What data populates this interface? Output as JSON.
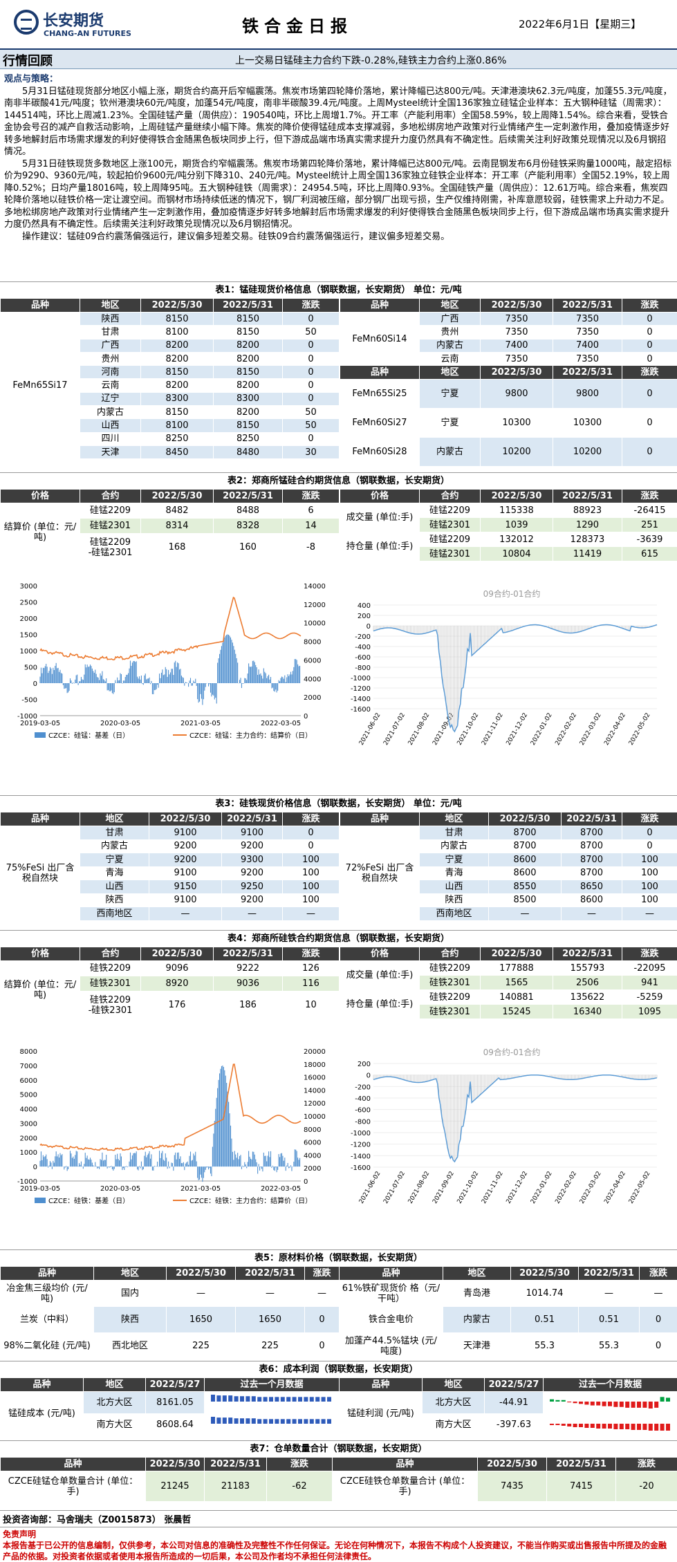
{
  "header": {
    "logo_cn": "长安期货",
    "logo_en": "CHANG-AN FUTURES",
    "title": "铁合金日报",
    "date": "2022年6月1日【星期三】"
  },
  "bar": {
    "label": "行情回顾",
    "text": "上一交易日锰硅主力合约下跌-0.28%,硅铁主力合约上涨0.86%"
  },
  "strategy": {
    "heading": "观点与策略：",
    "p1": "5月31日锰硅现货部分地区小幅上涨，期货合约高开后窄幅震荡。焦炭市场第四轮降价落地，累计降幅已达800元/吨。天津港澳块62.3元/吨度，加蓬55.3元/吨度，南非半碳酸41元/吨度；钦州港澳块60元/吨度，加蓬54元/吨度，南非半碳酸39.4元/吨度。上周Mysteel统计全国136家独立硅锰企业样本：五大钢种硅锰（周需求）：144514吨，环比上周减1.23%。全国硅锰产量（周供应）：190540吨，环比上周增1.7%。开工率（产能利用率）全国58.59%，较上周降1.54%。综合来看，受铁合金协会号召的减产自救活动影响，上周硅锰产量继续小幅下降。焦炭的降价使得锰硅成本支撑减弱，多地松绑房地产政策对行业情绪产生一定刺激作用，叠加疫情逐步好转多地解封后市场需求爆发的利好使得铁合金随黑色板块同步上行，但下游成品端市场真实需求提升力度仍然具有不确定性。后续需关注利好政策兑现情况以及6月钢招情况。",
    "p2": "5月31日硅铁现货多数地区上涨100元，期货合约窄幅震荡。焦炭市场第四轮降价落地，累计降幅已达800元/吨。云南昆钢发布6月份硅铁采购量1000吨，敲定招标价为9290、9360元/吨，较起拍价9600元/吨分别下降310、240元/吨。Mysteel统计上周全国136家独立硅铁企业样本：开工率（产能利用率）全国52.19%，较上周降0.52%；日均产量18016吨，较上周降95吨。五大钢种硅铁（周需求）：24954.5吨，环比上周降0.93%。全国硅铁产量（周供应）：12.61万吨。综合来看，焦炭四轮降价落地以硅铁价格一定让渡空间。而钢材市场持续低迷的情况下，钢厂利润被压缩，部分钢厂出现亏损，生产仅维持刚需，补库意愿较弱，硅铁需求上升动力不足。多地松绑房地产政策对行业情绪产生一定刺激作用，叠加疫情逐步好转多地解封后市场需求爆发的利好使得铁合金随黑色板块同步上行，但下游成品端市场真实需求提升力度仍然具有不确定性。后续需关注利好政策兑现情况以及6月钢招情况。",
    "p3": "操作建议：锰硅09合约震荡偏强运行，建议偏多短差交易。硅铁09合约震荡偏强运行，建议偏多短差交易。"
  },
  "t1": {
    "title": "表1：锰硅现货价格信息（钢联数据，长安期货）  单位：元/吨",
    "head": [
      "品种",
      "地区",
      "2022/5/30",
      "2022/5/31",
      "涨跌",
      "品种",
      "地区",
      "2022/5/30",
      "2022/5/31",
      "涨跌"
    ],
    "left_variety": "FeMn65Si17",
    "left_rows": [
      [
        "陕西",
        "8150",
        "8150",
        "0"
      ],
      [
        "甘肃",
        "8100",
        "8150",
        "50"
      ],
      [
        "广西",
        "8200",
        "8200",
        "0"
      ],
      [
        "贵州",
        "8200",
        "8200",
        "0"
      ],
      [
        "河南",
        "8150",
        "8150",
        "0"
      ],
      [
        "云南",
        "8200",
        "8200",
        "0"
      ],
      [
        "辽宁",
        "8300",
        "8300",
        "0"
      ],
      [
        "内蒙古",
        "8150",
        "8200",
        "50"
      ],
      [
        "山西",
        "8100",
        "8150",
        "50"
      ],
      [
        "四川",
        "8250",
        "8250",
        "0"
      ],
      [
        "天津",
        "8450",
        "8480",
        "30"
      ]
    ],
    "right_variety_a": "FeMn60Si14",
    "right_rows_a": [
      [
        "广西",
        "7350",
        "7350",
        "0"
      ],
      [
        "贵州",
        "7350",
        "7350",
        "0"
      ],
      [
        "内蒙古",
        "7400",
        "7400",
        "0"
      ],
      [
        "云南",
        "7350",
        "7350",
        "0"
      ]
    ],
    "right_head_b": [
      "品种",
      "地区",
      "2022/5/30",
      "2022/5/31",
      "涨跌"
    ],
    "right_rows_b": [
      [
        "FeMn65Si25",
        "宁夏",
        "9800",
        "9800",
        "0"
      ],
      [
        "FeMn60Si27",
        "宁夏",
        "10300",
        "10300",
        "0"
      ],
      [
        "FeMn60Si28",
        "内蒙古",
        "10200",
        "10200",
        "0"
      ]
    ]
  },
  "t2": {
    "title": "表2：郑商所锰硅合约期货信息（钢联数据，长安期货）",
    "head": [
      "价格",
      "合约",
      "2022/5/30",
      "2022/5/31",
      "涨跌",
      "价格",
      "合约",
      "2022/5/30",
      "2022/5/31",
      "涨跌"
    ],
    "left_label": "结算价\n(单位：元/吨)",
    "left_rows": [
      [
        "硅锰2209",
        "8482",
        "8488",
        "6"
      ],
      [
        "硅锰2301",
        "8314",
        "8328",
        "14"
      ],
      [
        "硅锰2209\n-硅锰2301",
        "168",
        "160",
        "-8"
      ]
    ],
    "vol_label": "成交量\n(单位:手)",
    "oi_label": "持仓量\n(单位:手)",
    "vol_rows": [
      [
        "硅锰2209",
        "115338",
        "88923",
        "-26415"
      ],
      [
        "硅锰2301",
        "1039",
        "1290",
        "251"
      ]
    ],
    "oi_rows": [
      [
        "硅锰2209",
        "132012",
        "128373",
        "-3639"
      ],
      [
        "硅锰2301",
        "10804",
        "11419",
        "615"
      ]
    ]
  },
  "c1": {
    "xt": [
      "2019-03-05",
      "2020-03-05",
      "2021-03-05",
      "2022-03-05"
    ],
    "yl": [
      "3000",
      "2500",
      "2000",
      "1500",
      "1000",
      "500",
      "0",
      "-500",
      "-1000"
    ],
    "yr": [
      "14000",
      "12000",
      "10000",
      "8000",
      "6000",
      "4000",
      "2000",
      "0"
    ],
    "legend_a": "CZCE：硅锰：基差（日）",
    "legend_b": "CZCE：硅锰：主力合约：结算价（日）"
  },
  "c2": {
    "title": "09合约-01合约",
    "yl": [
      "400",
      "200",
      "0",
      "-200",
      "-400",
      "-600",
      "-800",
      "-1000",
      "-1200",
      "-1400",
      "-1600"
    ],
    "xt": [
      "2021-06-02",
      "2021-07-02",
      "2021-08-02",
      "2021-09-02",
      "2021-10-02",
      "2021-11-02",
      "2021-12-02",
      "2022-01-02",
      "2022-02-02",
      "2022-03-02",
      "2022-04-02",
      "2022-05-02"
    ]
  },
  "t3": {
    "title": "表3：硅铁现货价格信息（钢联数据，长安期货）  单位：元/吨",
    "head": [
      "品种",
      "2022/5/30",
      "2022/5/31",
      "涨跌",
      "地区",
      "2022/5/30",
      "2022/5/31",
      "涨跌"
    ],
    "left_variety": "75%FeSi\n出厂含税自然块",
    "right_variety": "72%FeSi\n出厂含税自然块",
    "rows": [
      [
        "甘肃",
        "9100",
        "9100",
        "0",
        "甘肃",
        "8700",
        "8700",
        "0"
      ],
      [
        "内蒙古",
        "9200",
        "9200",
        "0",
        "内蒙古",
        "8700",
        "8700",
        "0"
      ],
      [
        "宁夏",
        "9200",
        "9300",
        "100",
        "宁夏",
        "8600",
        "8700",
        "100"
      ],
      [
        "青海",
        "9100",
        "9200",
        "100",
        "青海",
        "8600",
        "8700",
        "100"
      ],
      [
        "山西",
        "9150",
        "9250",
        "100",
        "山西",
        "8550",
        "8650",
        "100"
      ],
      [
        "陕西",
        "9100",
        "9200",
        "100",
        "陕西",
        "8500",
        "8600",
        "100"
      ],
      [
        "西南地区",
        "—",
        "—",
        "—",
        "西南地区",
        "—",
        "—",
        "—"
      ]
    ]
  },
  "t4": {
    "title": "表4：郑商所硅铁合约期货信息（钢联数据，长安期货）",
    "head": [
      "价格",
      "合约",
      "2022/5/30",
      "2022/5/31",
      "涨跌",
      "价格",
      "合约",
      "2022/5/30",
      "2022/5/31",
      "涨跌"
    ],
    "left_label": "结算价\n(单位：元/吨)",
    "left_rows": [
      [
        "硅铁2209",
        "9096",
        "9222",
        "126"
      ],
      [
        "硅铁2301",
        "8920",
        "9036",
        "116"
      ],
      [
        "硅铁2209\n-硅铁2301",
        "176",
        "186",
        "10"
      ]
    ],
    "vol_label": "成交量\n(单位:手)",
    "oi_label": "持仓量\n(单位:手)",
    "vol_rows": [
      [
        "硅铁2209",
        "177888",
        "155793",
        "-22095"
      ],
      [
        "硅铁2301",
        "1565",
        "2506",
        "941"
      ]
    ],
    "oi_rows": [
      [
        "硅铁2209",
        "140881",
        "135622",
        "-5259"
      ],
      [
        "硅铁2301",
        "15245",
        "16340",
        "1095"
      ]
    ]
  },
  "c3": {
    "xt": [
      "2019-03-05",
      "2020-03-05",
      "2021-03-05",
      "2022-03-05"
    ],
    "yl": [
      "8000",
      "7000",
      "6000",
      "5000",
      "4000",
      "3000",
      "2000",
      "1000",
      "0",
      "-1000"
    ],
    "yr": [
      "20000",
      "18000",
      "16000",
      "14000",
      "12000",
      "10000",
      "8000",
      "6000",
      "4000",
      "2000",
      "0"
    ],
    "legend_a": "CZCE：硅铁：基差（日）",
    "legend_b": "CZCE：硅铁：主力合约：结算价（日）"
  },
  "c4": {
    "title": "09合约-01合约",
    "yl": [
      "200",
      "0",
      "-200",
      "-400",
      "-600",
      "-800",
      "-1000",
      "-1200",
      "-1400",
      "-1600"
    ],
    "xt": [
      "2021-06-02",
      "2021-07-02",
      "2021-08-02",
      "2021-09-02",
      "2021-10-02",
      "2021-11-02",
      "2021-12-02",
      "2022-01-02",
      "2022-02-02",
      "2022-03-02",
      "2022-04-02",
      "2022-05-02"
    ]
  },
  "t5": {
    "title": "表5：原材料价格（钢联数据，长安期货）",
    "head": [
      "品种",
      "地区",
      "2022/5/30",
      "2022/5/31",
      "涨跌",
      "品种",
      "地区",
      "2022/5/30",
      "2022/5/31",
      "涨跌"
    ],
    "rows": [
      [
        "冶金焦三级均价\n(元/吨)",
        "国内",
        "—",
        "—",
        "—",
        "61%铁矿现货价\n格（元/干吨）",
        "青岛港",
        "1014.74",
        "—",
        "—"
      ],
      [
        "兰炭（中料）",
        "陕西",
        "1650",
        "1650",
        "0",
        "铁合金电价",
        "内蒙古",
        "0.51",
        "0.51",
        "0"
      ],
      [
        "98%二氧化硅\n(元/吨)",
        "西北地区",
        "225",
        "225",
        "0",
        "加蓬产44.5%锰块\n(元/吨度)",
        "天津港",
        "55.3",
        "55.3",
        "0"
      ]
    ]
  },
  "t6": {
    "title": "表6：成本利润（钢联数据，长安期货）",
    "head": [
      "品种",
      "地区",
      "2022/5/27",
      "过去一个月数据",
      "品种",
      "地区",
      "2022/5/27",
      "过去一个月数据"
    ],
    "left_label": "锰硅成本\n(元/吨)",
    "right_label": "锰硅利润\n(元/吨)",
    "left_rows": [
      [
        "北方大区",
        "8161.05"
      ],
      [
        "南方大区",
        "8608.64"
      ]
    ],
    "right_rows": [
      [
        "北方大区",
        "-44.91"
      ],
      [
        "南方大区",
        "-397.63"
      ]
    ]
  },
  "t7": {
    "title": "表7：仓单数量合计（钢联数据，长安期货）",
    "head": [
      "品种",
      "2022/5/30",
      "2022/5/31",
      "涨跌",
      "品种",
      "2022/5/30",
      "2022/5/31",
      "涨跌"
    ],
    "row": [
      "CZCE硅锰仓单数量合计\n(单位：手)",
      "21245",
      "21183",
      "-62",
      "CZCE硅铁仓单数量合计\n(单位：手)",
      "7435",
      "7415",
      "-20"
    ]
  },
  "footer": {
    "author": "投资咨询部：马舍瑞夫（Z0015873） 张晨哲"
  },
  "disclaimer": {
    "title": "免责声明",
    "text": "本报告基于已公开的信息编制，仅供参考，本公司对信息的准确性及完整性不作任何保证。无论在何种情况下，本报告不构成个人投资建议，不能当作购买或出售报告中所提及的金融产品的依据。对投资者依据或者使用本报告所造成的一切后果，本公司及作者均不承担任何法律责任。"
  },
  "colors": {
    "navy": "#1a3a6e",
    "header": "#3d3d3d",
    "blue_row": "#dae7f3",
    "green_row": "#e2efd9",
    "basis": "#4f8fcf",
    "price": "#ec7a2f",
    "spread": "#5b9bd5",
    "pos": "#00a040",
    "neg": "#e01a1a"
  }
}
